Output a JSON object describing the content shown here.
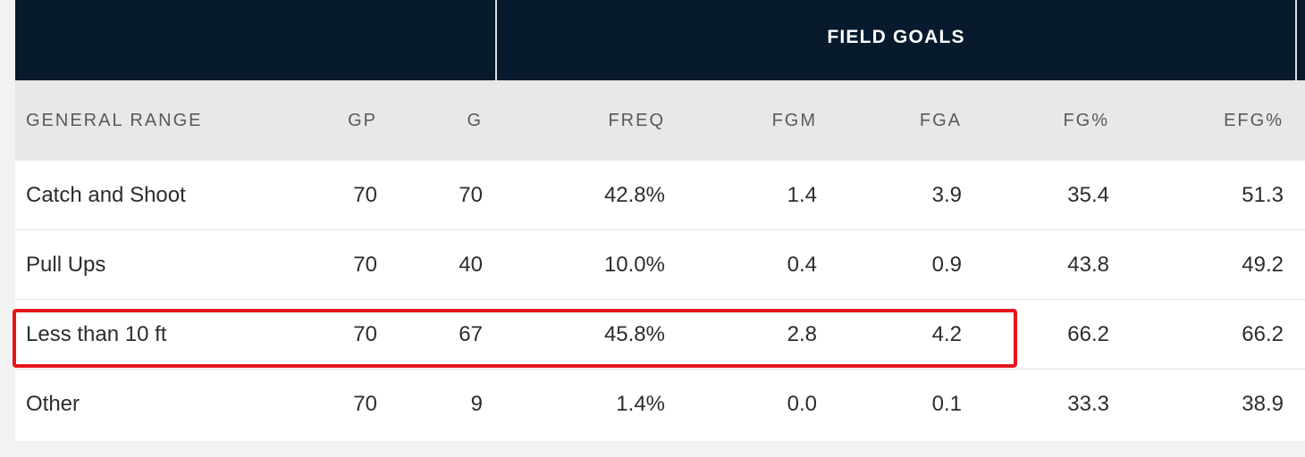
{
  "table": {
    "group_header": "FIELD GOALS",
    "columns": {
      "range": "GENERAL RANGE",
      "gp": "GP",
      "g": "G",
      "freq": "FREQ",
      "fgm": "FGM",
      "fga": "FGA",
      "fgp": "FG%",
      "efg": "EFG%"
    },
    "rows": [
      {
        "range": "Catch and Shoot",
        "gp": "70",
        "g": "70",
        "freq": "42.8%",
        "fgm": "1.4",
        "fga": "3.9",
        "fgp": "35.4",
        "efg": "51.3"
      },
      {
        "range": "Pull Ups",
        "gp": "70",
        "g": "40",
        "freq": "10.0%",
        "fgm": "0.4",
        "fga": "0.9",
        "fgp": "43.8",
        "efg": "49.2"
      },
      {
        "range": "Less than 10 ft",
        "gp": "70",
        "g": "67",
        "freq": "45.8%",
        "fgm": "2.8",
        "fga": "4.2",
        "fgp": "66.2",
        "efg": "66.2"
      },
      {
        "range": "Other",
        "gp": "70",
        "g": "9",
        "freq": "1.4%",
        "fgm": "0.0",
        "fga": "0.1",
        "fgp": "33.3",
        "efg": "38.9"
      }
    ]
  },
  "colors": {
    "header_bg": "#081a2d",
    "column_header_bg": "#e8e8e8",
    "highlight": "#e8141c"
  }
}
